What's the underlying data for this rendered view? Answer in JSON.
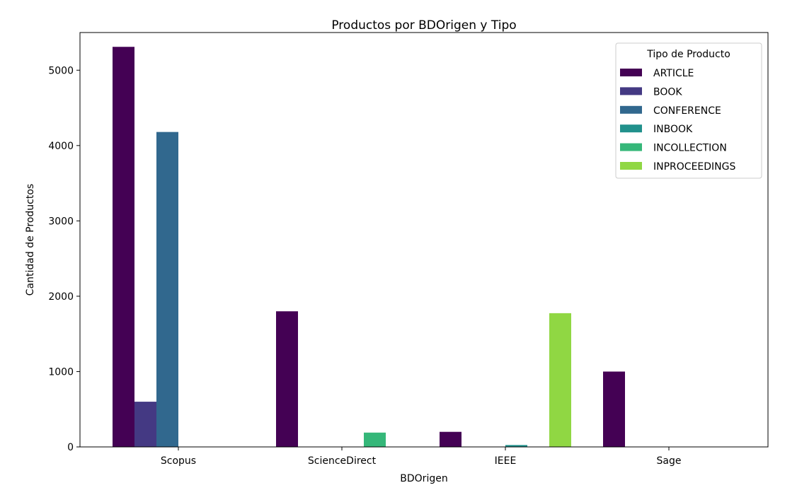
{
  "chart_data": {
    "type": "bar",
    "title": "Productos por BDOrigen y Tipo",
    "xlabel": "BDOrigen",
    "ylabel": "Cantidad de Productos",
    "categories": [
      "Scopus",
      "ScienceDirect",
      "IEEE",
      "Sage"
    ],
    "ylim": [
      0,
      5500
    ],
    "yticks": [
      0,
      1000,
      2000,
      3000,
      4000,
      5000
    ],
    "ytick_labels": [
      "0",
      "1000",
      "2000",
      "3000",
      "4000",
      "5000"
    ],
    "grid": false,
    "legend": {
      "title": "Tipo de Producto",
      "placement": "top-right"
    },
    "series": [
      {
        "name": "ARTICLE",
        "color": "#440154",
        "values": [
          5310,
          1800,
          200,
          1000
        ]
      },
      {
        "name": "BOOK",
        "color": "#443983",
        "values": [
          600,
          0,
          0,
          0
        ]
      },
      {
        "name": "CONFERENCE",
        "color": "#31688e",
        "values": [
          4180,
          0,
          0,
          0
        ]
      },
      {
        "name": "INBOOK",
        "color": "#21918c",
        "values": [
          0,
          0,
          25,
          0
        ]
      },
      {
        "name": "INCOLLECTION",
        "color": "#35b779",
        "values": [
          0,
          190,
          0,
          0
        ]
      },
      {
        "name": "INPROCEEDINGS",
        "color": "#90d743",
        "values": [
          0,
          0,
          1775,
          0
        ]
      }
    ]
  }
}
